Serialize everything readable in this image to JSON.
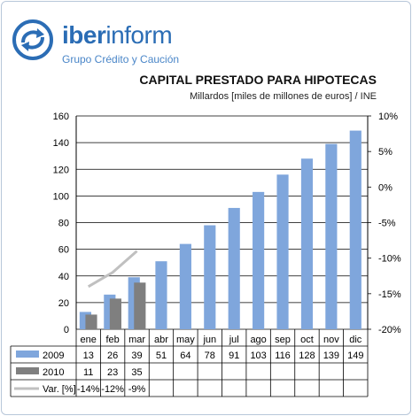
{
  "brand": {
    "name_bold": "iber",
    "name_light": "inform",
    "tagline": "Grupo Crédito y Caución",
    "color": "#2b6db5"
  },
  "chart_data": {
    "type": "bar",
    "title": "CAPITAL PRESTADO PARA HIPOTECAS",
    "subtitle": "Millardos [miles de millones de euros] / INE",
    "categories": [
      "ene",
      "feb",
      "mar",
      "abr",
      "may",
      "jun",
      "jul",
      "ago",
      "sep",
      "oct",
      "nov",
      "dic"
    ],
    "series": [
      {
        "name": "2009",
        "values": [
          13,
          26,
          39,
          51,
          64,
          78,
          91,
          103,
          116,
          128,
          139,
          149
        ],
        "color": "#7fa6dc",
        "axis": "left",
        "kind": "bar"
      },
      {
        "name": "2010",
        "values": [
          11,
          23,
          35,
          null,
          null,
          null,
          null,
          null,
          null,
          null,
          null,
          null
        ],
        "color": "#7f7f7f",
        "axis": "left",
        "kind": "bar"
      },
      {
        "name": "Var. [%]",
        "values": [
          -14,
          -12,
          -9,
          null,
          null,
          null,
          null,
          null,
          null,
          null,
          null,
          null
        ],
        "color": "#c0c0c0",
        "axis": "right",
        "kind": "line"
      }
    ],
    "table_labels": {
      "2009": [
        "13",
        "26",
        "39",
        "51",
        "64",
        "78",
        "91",
        "103",
        "116",
        "128",
        "139",
        "149"
      ],
      "2010": [
        "11",
        "23",
        "35",
        "",
        "",
        "",
        "",
        "",
        "",
        "",
        "",
        ""
      ],
      "var": [
        "-14%",
        "-12%",
        "-9%",
        "",
        "",
        "",
        "",
        "",
        "",
        "",
        "",
        ""
      ]
    },
    "ylim": [
      0,
      160
    ],
    "yticks": [
      0,
      20,
      40,
      60,
      80,
      100,
      120,
      140,
      160
    ],
    "y2lim": [
      -20,
      10
    ],
    "y2ticks": [
      -20,
      -15,
      -10,
      -5,
      0,
      5,
      10
    ],
    "y2tick_labels": [
      "-20%",
      "-15%",
      "-10%",
      "-5%",
      "0%",
      "5%",
      "10%"
    ],
    "grid": true
  }
}
